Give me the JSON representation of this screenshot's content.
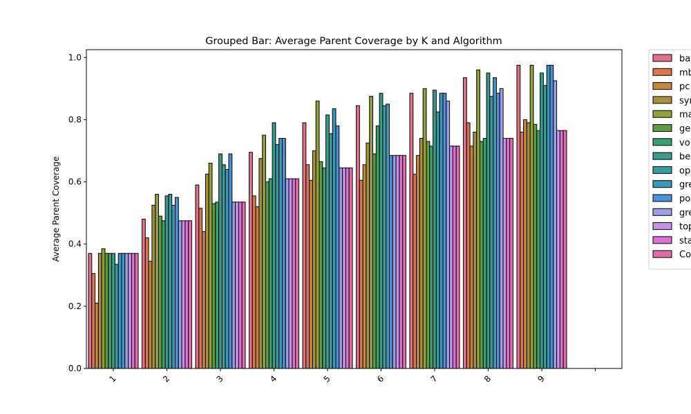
{
  "chart_data": {
    "type": "bar",
    "title": "Grouped Bar: Average Parent Coverage by K and Algorithm",
    "xlabel": "",
    "ylabel": "Average Parent Coverage",
    "ylim": [
      0,
      1.025
    ],
    "y_ticks": [
      "0.0",
      "0.2",
      "0.4",
      "0.6",
      "0.8",
      "1.0"
    ],
    "categories": [
      "1",
      "2",
      "3",
      "4",
      "5",
      "6",
      "7",
      "8",
      "9",
      ""
    ],
    "grid": false,
    "legend_position": "outside-right",
    "legend_truncated": true,
    "series": [
      {
        "name": "ba",
        "color": "#e0718a",
        "values": [
          0.37,
          0.48,
          0.59,
          0.695,
          0.79,
          0.845,
          0.885,
          0.935,
          0.975,
          null
        ]
      },
      {
        "name": "mb",
        "color": "#d9784f",
        "values": [
          0.305,
          0.42,
          0.515,
          0.555,
          0.655,
          0.605,
          0.625,
          0.79,
          0.76,
          null
        ]
      },
      {
        "name": "pc",
        "color": "#c38739",
        "values": [
          0.21,
          0.345,
          0.44,
          0.52,
          0.605,
          0.655,
          0.685,
          0.715,
          0.8,
          null
        ]
      },
      {
        "name": "syr",
        "color": "#a9913b",
        "values": [
          0.37,
          0.525,
          0.625,
          0.675,
          0.7,
          0.725,
          0.74,
          0.76,
          0.79,
          null
        ]
      },
      {
        "name": "ma",
        "color": "#93a13a",
        "values": [
          0.385,
          0.56,
          0.66,
          0.75,
          0.86,
          0.875,
          0.9,
          0.96,
          0.975,
          null
        ]
      },
      {
        "name": "ge",
        "color": "#5d9e42",
        "values": [
          0.37,
          0.49,
          0.53,
          0.6,
          0.665,
          0.69,
          0.73,
          0.73,
          0.785,
          null
        ]
      },
      {
        "name": "vo",
        "color": "#3b9f70",
        "values": [
          0.37,
          0.475,
          0.535,
          0.61,
          0.645,
          0.78,
          0.715,
          0.74,
          0.765,
          null
        ]
      },
      {
        "name": "be",
        "color": "#3a9b8b",
        "values": [
          0.37,
          0.555,
          0.69,
          0.79,
          0.815,
          0.885,
          0.895,
          0.95,
          0.95,
          null
        ]
      },
      {
        "name": "op",
        "color": "#3a9aa1",
        "values": [
          0.335,
          0.56,
          0.655,
          0.72,
          0.755,
          0.845,
          0.825,
          0.875,
          0.91,
          null
        ]
      },
      {
        "name": "gre",
        "color": "#3b98b8",
        "values": [
          0.37,
          0.525,
          0.64,
          0.74,
          0.835,
          0.85,
          0.885,
          0.935,
          0.975,
          null
        ]
      },
      {
        "name": "po",
        "color": "#4c91d6",
        "values": [
          0.37,
          0.55,
          0.69,
          0.74,
          0.78,
          0.685,
          0.885,
          0.885,
          0.975,
          null
        ]
      },
      {
        "name": "gre",
        "color": "#9c9ee3",
        "values": [
          0.37,
          0.475,
          0.535,
          0.61,
          0.645,
          0.685,
          0.86,
          0.9,
          0.925,
          null
        ]
      },
      {
        "name": "top",
        "color": "#c693e8",
        "values": [
          0.37,
          0.475,
          0.535,
          0.61,
          0.645,
          0.685,
          0.715,
          0.74,
          0.765,
          null
        ]
      },
      {
        "name": "sta",
        "color": "#db70d6",
        "values": [
          0.37,
          0.475,
          0.535,
          0.61,
          0.645,
          0.685,
          0.715,
          0.74,
          0.765,
          null
        ]
      },
      {
        "name": "Co",
        "color": "#e06fa8",
        "values": [
          0.37,
          0.475,
          0.535,
          0.61,
          0.645,
          0.685,
          0.715,
          0.74,
          0.765,
          null
        ]
      }
    ]
  }
}
